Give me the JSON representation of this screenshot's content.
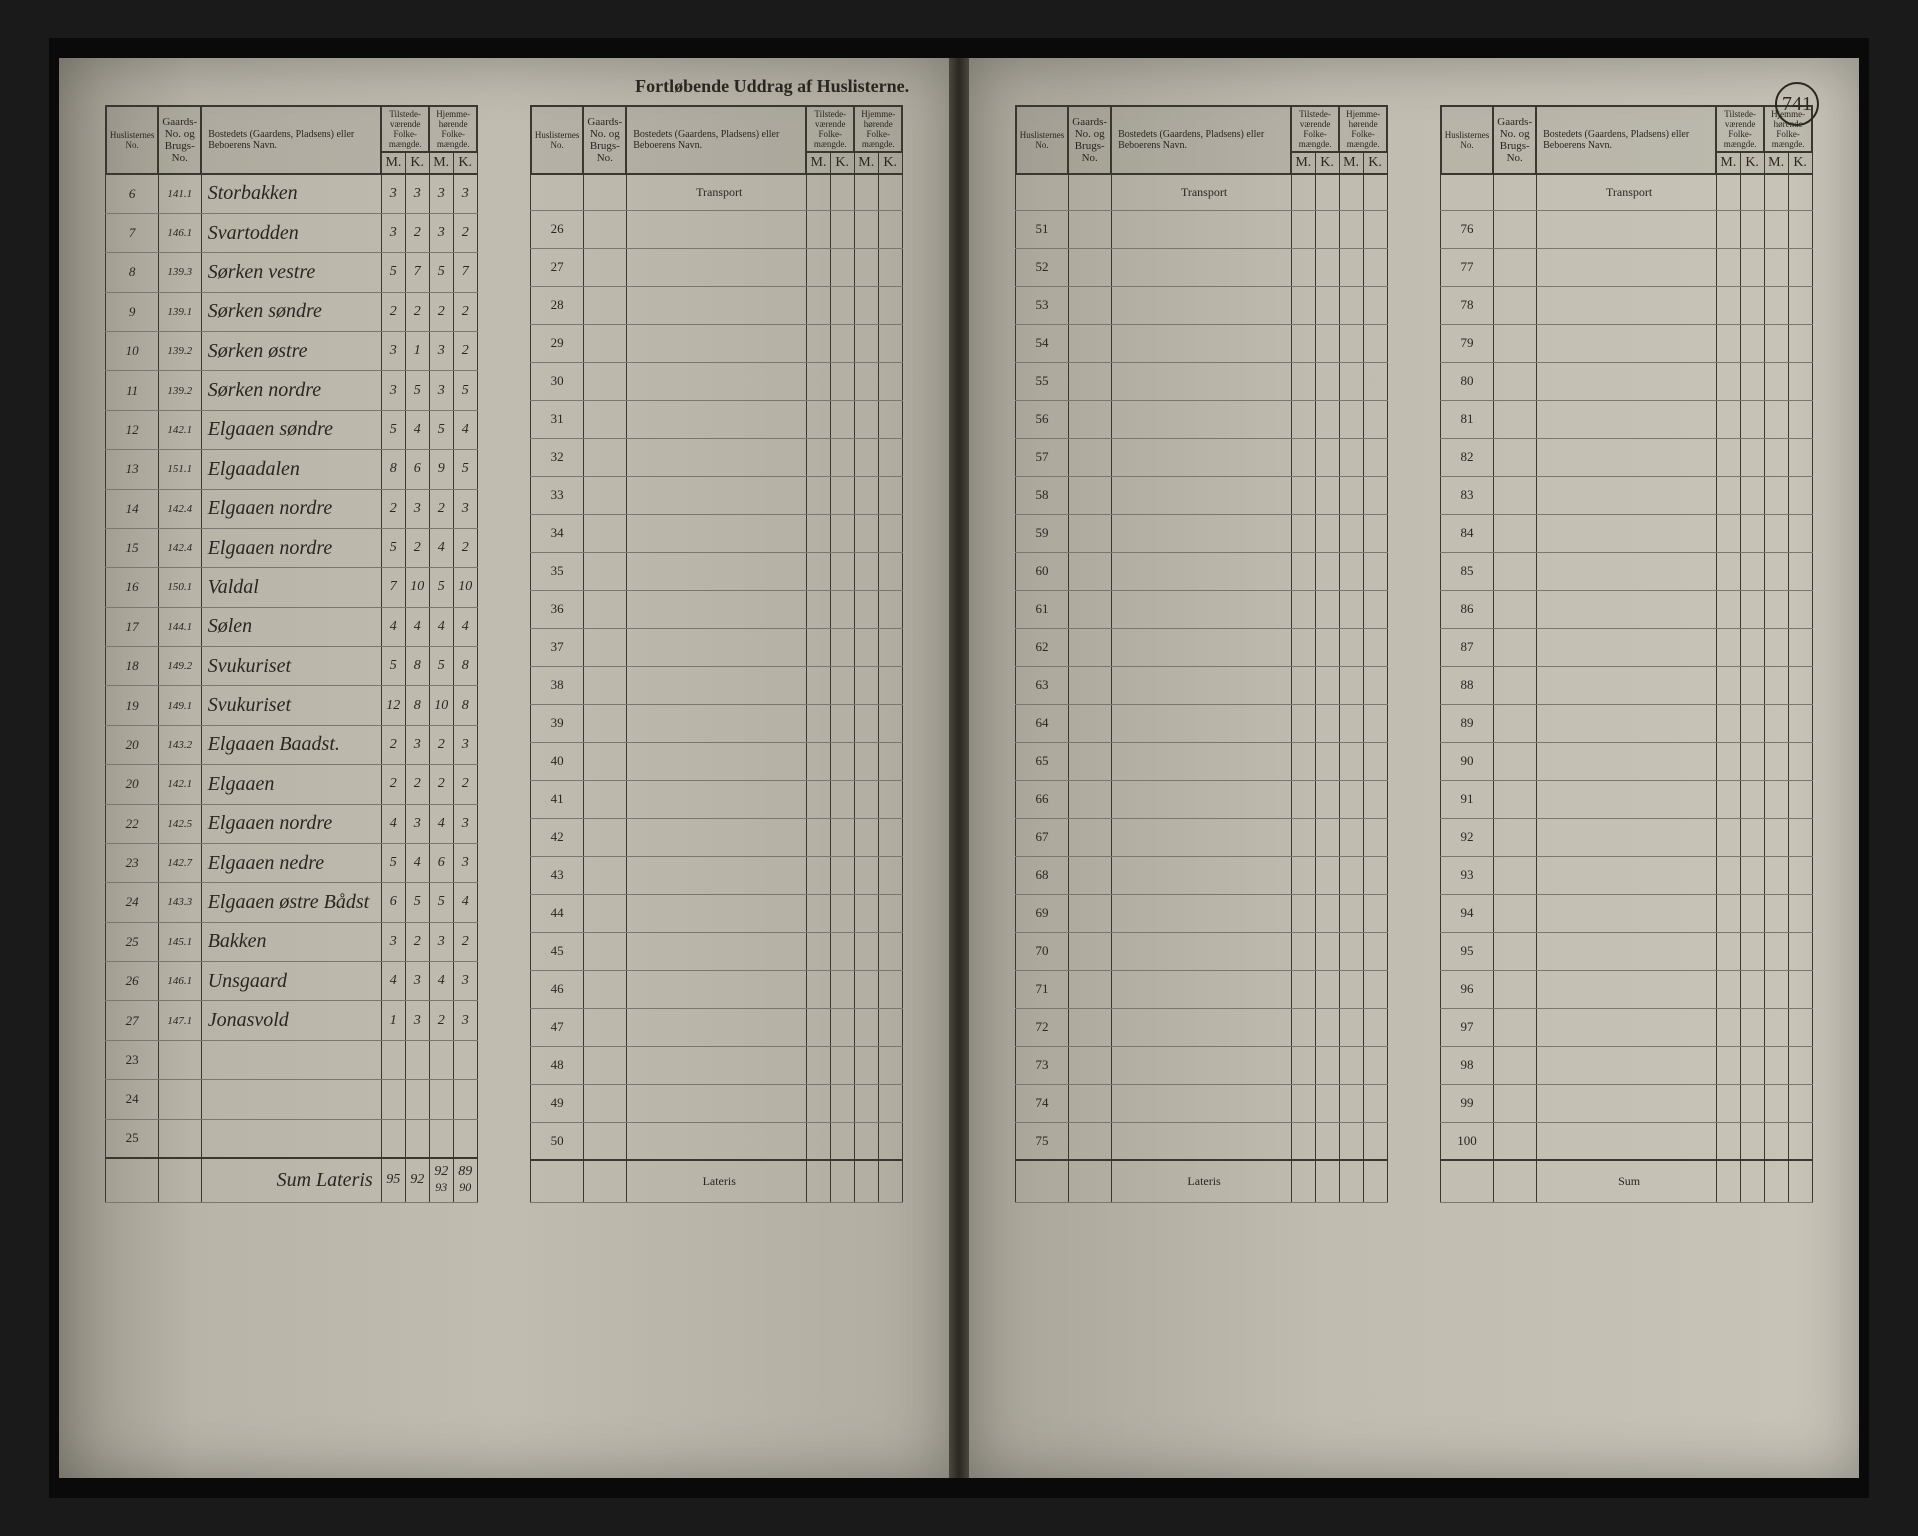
{
  "title": "Fortløbende Uddrag af Huslisterne.",
  "page_number": "741",
  "headers": {
    "huslisternes": "Huslisternes No.",
    "gaards": "Gaards-No. og Brugs-No.",
    "bostedets": "Bostedets (Gaardens, Pladsens) eller Beboerens Navn.",
    "tilstede": "Tilstede-værende Folke-mængde.",
    "hjemme": "Hjemme-hørende Folke-mængde.",
    "m": "M.",
    "k": "K."
  },
  "transport": "Transport",
  "lateris": "Lateris",
  "sum": "Sum",
  "sum_lateris": "Sum Lateris",
  "entries": [
    {
      "n": "6",
      "id": "141.1",
      "name": "Storbakken",
      "tm": "3",
      "tk": "3",
      "hm": "3",
      "hk": "3"
    },
    {
      "n": "7",
      "id": "146.1",
      "name": "Svartodden",
      "tm": "3",
      "tk": "2",
      "hm": "3",
      "hk": "2"
    },
    {
      "n": "8",
      "id": "139.3",
      "name": "Sørken vestre",
      "tm": "5",
      "tk": "7",
      "hm": "5",
      "hk": "7"
    },
    {
      "n": "9",
      "id": "139.1",
      "name": "Sørken søndre",
      "tm": "2",
      "tk": "2",
      "hm": "2",
      "hk": "2"
    },
    {
      "n": "10",
      "id": "139.2",
      "name": "Sørken østre",
      "tm": "3",
      "tk": "1",
      "hm": "3",
      "hk": "2"
    },
    {
      "n": "11",
      "id": "139.2",
      "name": "Sørken nordre",
      "tm": "3",
      "tk": "5",
      "hm": "3",
      "hk": "5"
    },
    {
      "n": "12",
      "id": "142.1",
      "name": "Elgaaen søndre",
      "tm": "5",
      "tk": "4",
      "hm": "5",
      "hk": "4"
    },
    {
      "n": "13",
      "id": "151.1",
      "name": "Elgaadalen",
      "tm": "8",
      "tk": "6",
      "hm": "9",
      "hk": "5"
    },
    {
      "n": "14",
      "id": "142.4",
      "name": "Elgaaen nordre",
      "tm": "2",
      "tk": "3",
      "hm": "2",
      "hk": "3"
    },
    {
      "n": "15",
      "id": "142.4",
      "name": "Elgaaen nordre",
      "tm": "5",
      "tk": "2",
      "hm": "4",
      "hk": "2"
    },
    {
      "n": "16",
      "id": "150.1",
      "name": "Valdal",
      "tm": "7",
      "tk": "10",
      "hm": "5",
      "hk": "10"
    },
    {
      "n": "17",
      "id": "144.1",
      "name": "Sølen",
      "tm": "4",
      "tk": "4",
      "hm": "4",
      "hk": "4"
    },
    {
      "n": "18",
      "id": "149.2",
      "name": "Svukuriset",
      "tm": "5",
      "tk": "8",
      "hm": "5",
      "hk": "8"
    },
    {
      "n": "19",
      "id": "149.1",
      "name": "Svukuriset",
      "tm": "12",
      "tk": "8",
      "hm": "10",
      "hk": "8"
    },
    {
      "n": "20",
      "id": "143.2",
      "name": "Elgaaen Baadst.",
      "tm": "2",
      "tk": "3",
      "hm": "2",
      "hk": "3"
    },
    {
      "n": "20",
      "id": "142.1",
      "name": "Elgaaen",
      "tm": "2",
      "tk": "2",
      "hm": "2",
      "hk": "2"
    },
    {
      "n": "22",
      "id": "142.5",
      "name": "Elgaaen nordre",
      "tm": "4",
      "tk": "3",
      "hm": "4",
      "hk": "3"
    },
    {
      "n": "23",
      "id": "142.7",
      "name": "Elgaaen nedre",
      "tm": "5",
      "tk": "4",
      "hm": "6",
      "hk": "3"
    },
    {
      "n": "24",
      "id": "143.3",
      "name": "Elgaaen østre Bådst",
      "tm": "6",
      "tk": "5",
      "hm": "5",
      "hk": "4"
    },
    {
      "n": "25",
      "id": "145.1",
      "name": "Bakken",
      "tm": "3",
      "tk": "2",
      "hm": "3",
      "hk": "2"
    },
    {
      "n": "26",
      "id": "146.1",
      "name": "Unsgaard",
      "tm": "4",
      "tk": "3",
      "hm": "4",
      "hk": "3"
    },
    {
      "n": "27",
      "id": "147.1",
      "name": "Jonasvold",
      "tm": "1",
      "tk": "3",
      "hm": "2",
      "hk": "3"
    }
  ],
  "blank_rows_left": [
    "23",
    "24",
    "25"
  ],
  "sums": {
    "tm": "95",
    "tk": "92",
    "hm": "92",
    "hk": "89"
  },
  "sums_alt": {
    "hm": "93",
    "hk": "90"
  },
  "panel2_start": 26,
  "panel2_end": 50,
  "panel3_start": 51,
  "panel3_end": 75,
  "panel4_start": 76,
  "panel4_end": 100
}
